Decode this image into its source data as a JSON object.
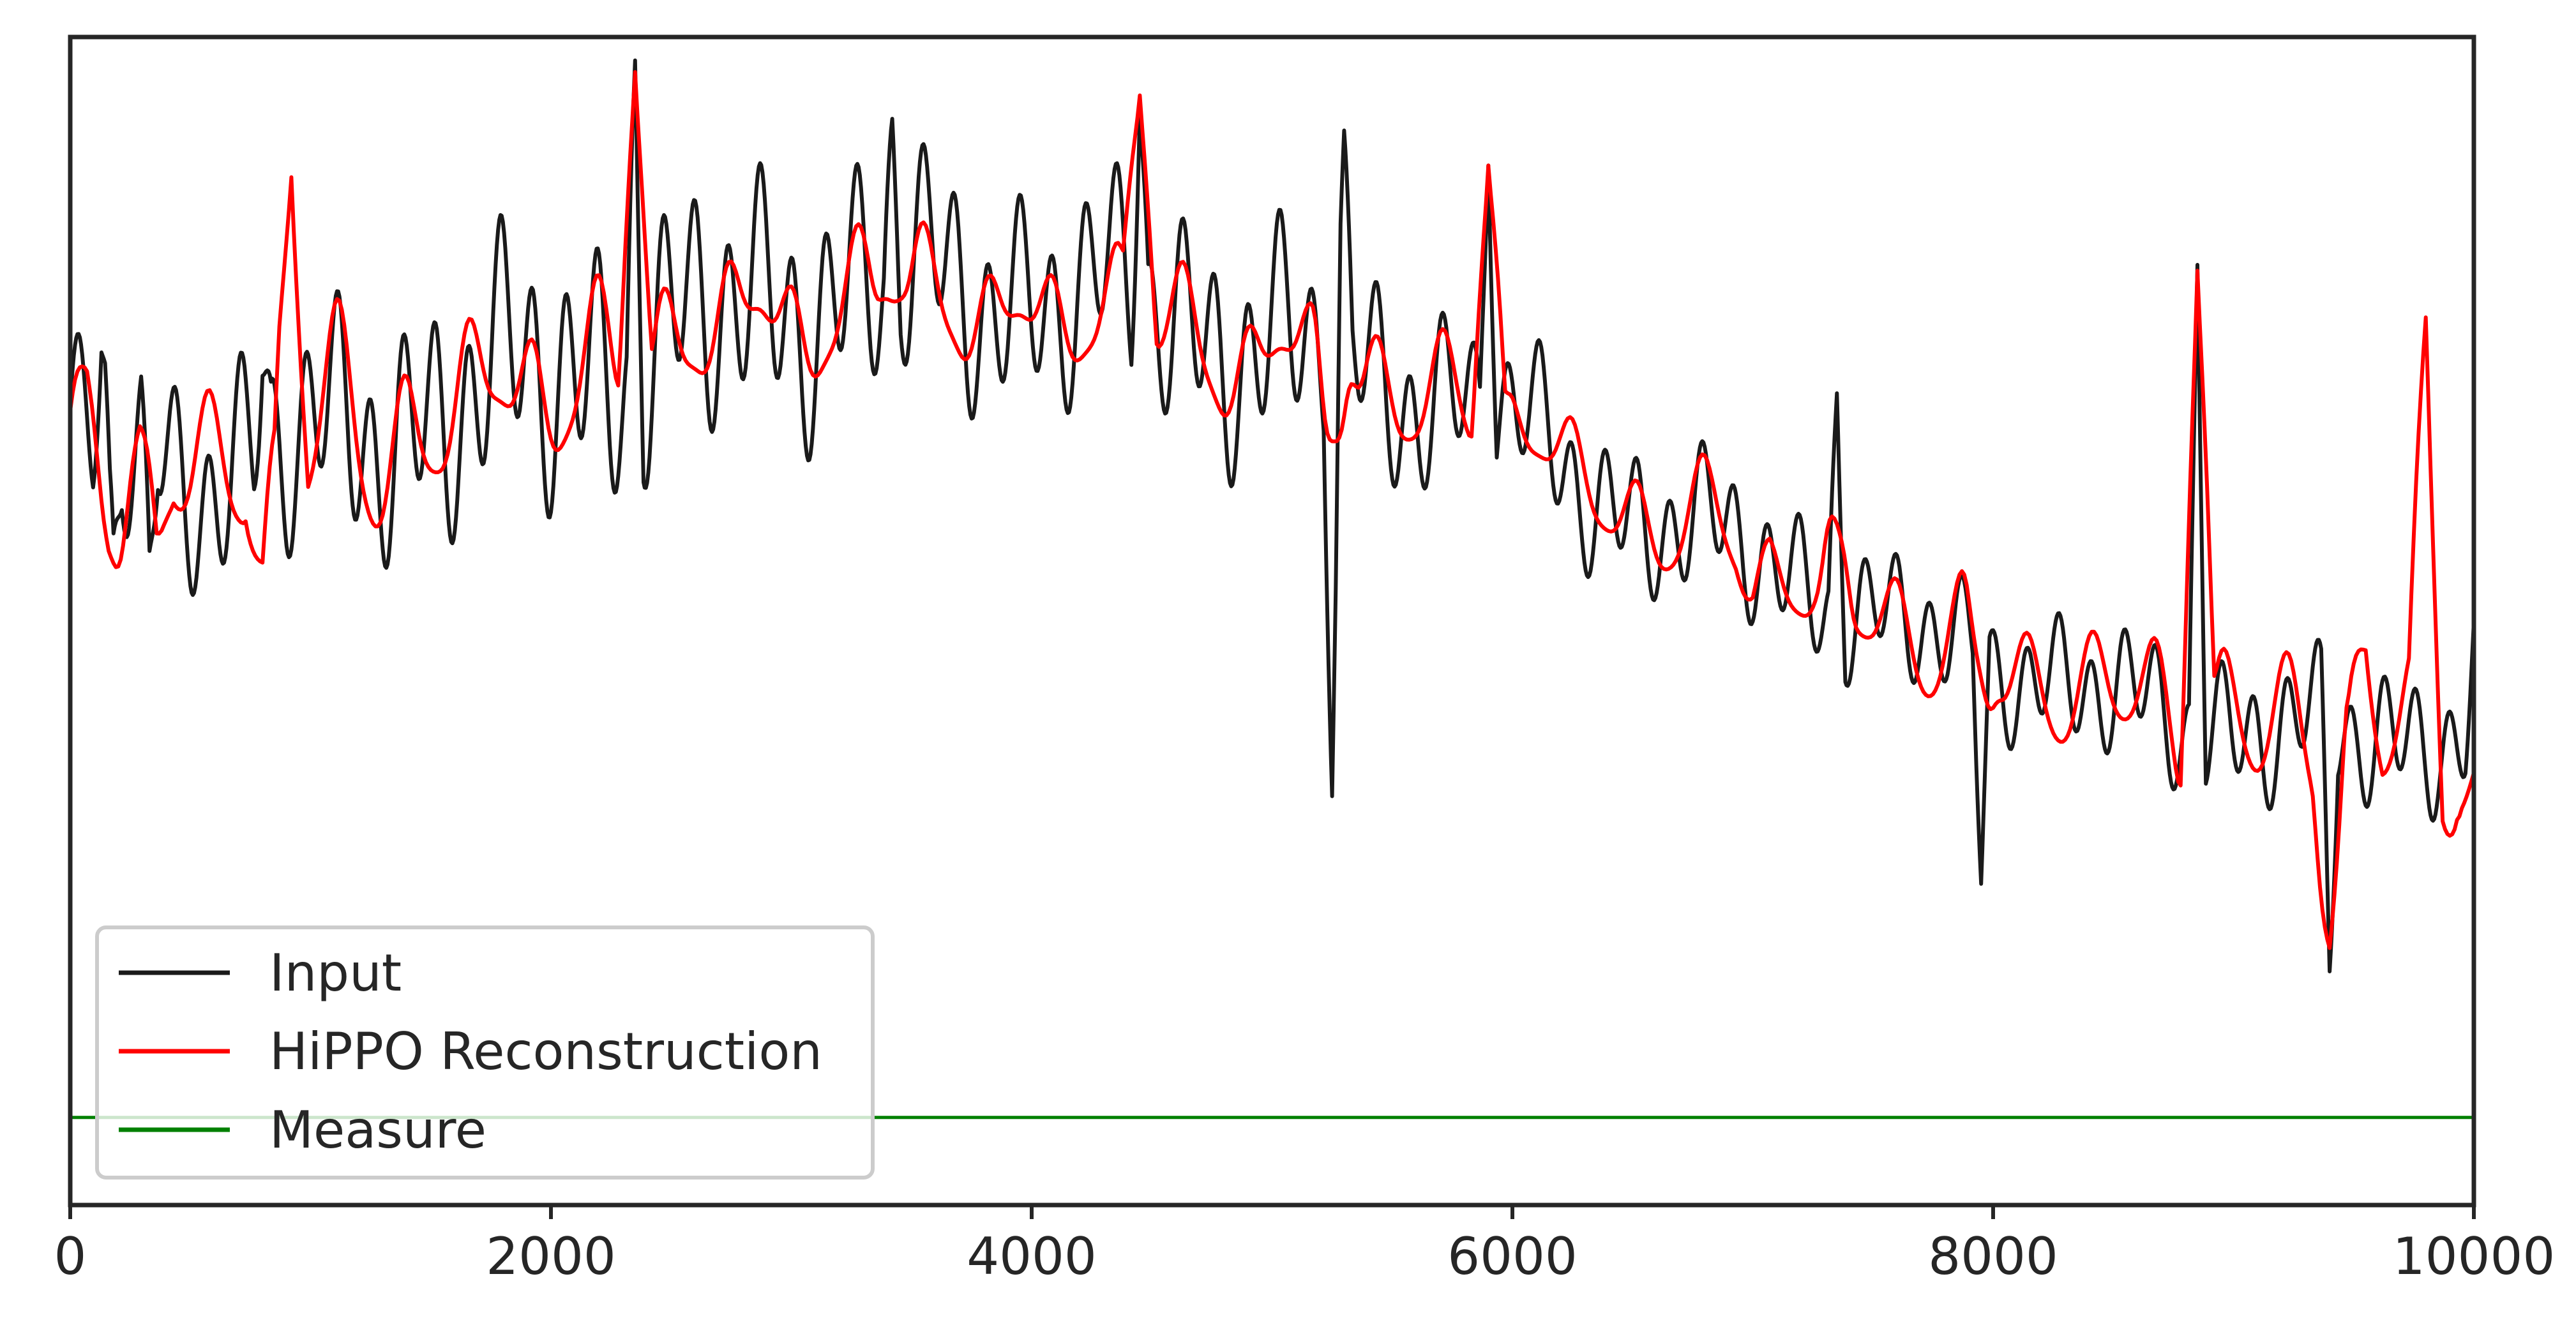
{
  "chart_data": {
    "type": "line",
    "title": "",
    "xlabel": "",
    "ylabel": "",
    "xlim": [
      0,
      10000
    ],
    "ylim": [
      -1.0,
      1.0
    ],
    "x_ticks": [
      0,
      2000,
      4000,
      6000,
      8000,
      10000
    ],
    "x_tick_labels": [
      "0",
      "2000",
      "4000",
      "6000",
      "8000",
      "10000"
    ],
    "y_ticks": [],
    "grid": false,
    "legend_location": "lower-left",
    "colors": {
      "Input": "#1a1a1a",
      "HiPPO Reconstruction": "#ff0000",
      "Measure": "#008000",
      "axes": "#262626"
    },
    "series": [
      {
        "name": "Input",
        "trend": {
          "x": [
            0,
            500,
            1000,
            1500,
            2000,
            2500,
            3000,
            3500,
            4000,
            4500,
            5000,
            5500,
            6000,
            6500,
            7000,
            7500,
            8000,
            8500,
            9000,
            9500,
            10000
          ],
          "y": [
            0.3,
            0.26,
            0.3,
            0.36,
            0.42,
            0.48,
            0.56,
            0.58,
            0.56,
            0.54,
            0.46,
            0.42,
            0.34,
            0.18,
            0.12,
            0.0,
            -0.06,
            -0.14,
            -0.18,
            -0.2,
            -0.18
          ]
        },
        "amplitude": {
          "x": [
            0,
            1000,
            2000,
            3000,
            4000,
            5000,
            6000,
            7000,
            8000,
            9000,
            10000
          ],
          "y": [
            0.2,
            0.26,
            0.3,
            0.28,
            0.24,
            0.26,
            0.18,
            0.16,
            0.14,
            0.16,
            0.16
          ]
        },
        "x_samples": [
          0,
          130,
          180,
          330,
          800,
          2350,
          3420,
          4450,
          5250,
          5300,
          5900,
          7350,
          7950,
          8850,
          9400,
          10000
        ],
        "y_samples": [
          0.38,
          0.46,
          0.15,
          0.12,
          0.42,
          0.96,
          0.86,
          0.87,
          -0.3,
          0.84,
          0.78,
          0.39,
          -0.45,
          0.61,
          -0.6,
          0.0
        ]
      },
      {
        "name": "HiPPO Reconstruction",
        "trend": {
          "x": [
            0,
            500,
            1000,
            1500,
            2000,
            2500,
            3000,
            3500,
            4000,
            4500,
            5000,
            5500,
            6000,
            6500,
            7000,
            7500,
            8000,
            8500,
            9000,
            9500,
            10000
          ],
          "y": [
            0.3,
            0.26,
            0.3,
            0.34,
            0.4,
            0.46,
            0.52,
            0.54,
            0.5,
            0.5,
            0.44,
            0.4,
            0.32,
            0.2,
            0.12,
            0.0,
            -0.06,
            -0.14,
            -0.18,
            -0.22,
            -0.18
          ]
        },
        "amplitude": {
          "x": [
            0,
            1000,
            2000,
            3000,
            4000,
            5000,
            6000,
            7000,
            8000,
            9000,
            10000
          ],
          "y": [
            0.16,
            0.18,
            0.14,
            0.1,
            0.1,
            0.1,
            0.1,
            0.09,
            0.12,
            0.16,
            0.18
          ]
        },
        "x_samples": [
          0,
          160,
          360,
          800,
          920,
          2350,
          4450,
          5900,
          7000,
          8850,
          9400,
          9550,
          9800,
          10000
        ],
        "y_samples": [
          0.36,
          0.12,
          0.15,
          0.1,
          0.76,
          0.94,
          0.9,
          0.78,
          0.04,
          0.6,
          -0.56,
          -0.05,
          0.52,
          -0.26
        ]
      },
      {
        "name": "Measure",
        "x": [
          0,
          10000
        ],
        "y": [
          -0.85,
          -0.85
        ]
      }
    ],
    "legend_entries": [
      "Input",
      "HiPPO Reconstruction",
      "Measure"
    ]
  }
}
